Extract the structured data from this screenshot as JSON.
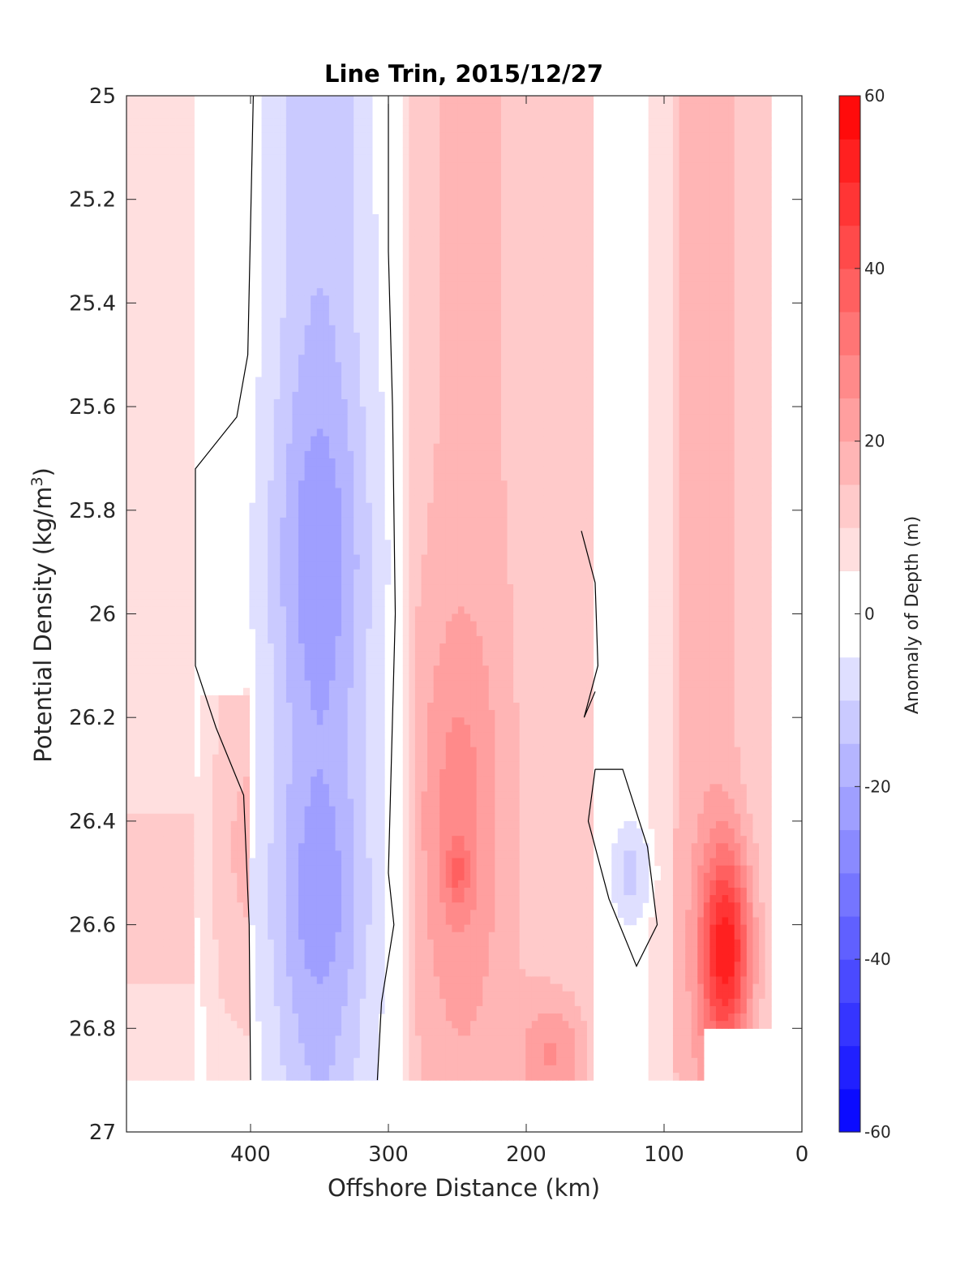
{
  "chart_data": {
    "type": "contourf",
    "title": "Line Trin, 2015/12/27",
    "xlabel": "Offshore Distance (km)",
    "ylabel": "Potential Density (kg/m",
    "ylabel_superscript": "3",
    "ylabel_suffix": ")",
    "xlim": [
      490,
      0
    ],
    "ylim": [
      25,
      27
    ],
    "x_reversed": true,
    "y_reversed": true,
    "xticks": [
      400,
      300,
      200,
      100,
      0
    ],
    "yticks": [
      25,
      25.2,
      25.4,
      25.6,
      25.8,
      26,
      26.2,
      26.4,
      26.6,
      26.8,
      27
    ],
    "xtick_labels": [
      "400",
      "300",
      "200",
      "100",
      "0"
    ],
    "ytick_labels": [
      "25",
      "25.2",
      "25.4",
      "25.6",
      "25.8",
      "26",
      "26.2",
      "26.4",
      "26.6",
      "26.8",
      "27"
    ],
    "colorbar": {
      "label": "Anomaly of Depth (m)",
      "range": [
        -60,
        60
      ],
      "level_step": 5,
      "ticks": [
        60,
        40,
        20,
        0,
        -20,
        -40,
        -60
      ],
      "tick_labels": [
        "60",
        "40",
        "20",
        "0",
        "-20",
        "-40",
        "-60"
      ],
      "low_color": "#0000ff",
      "mid_color": "#ffffff",
      "high_color": "#ff0000"
    },
    "zero_contour": true,
    "data_coverage": {
      "max_density_offshore": 26.9,
      "max_density_nearshore": 26.8
    },
    "field_features": [
      {
        "x": 345,
        "y": 25.95,
        "value": -27
      },
      {
        "x": 350,
        "y": 25.7,
        "value": -28
      },
      {
        "x": 345,
        "y": 26.5,
        "value": -26
      },
      {
        "x": 345,
        "y": 26.72,
        "value": -26
      },
      {
        "x": 120,
        "y": 26.58,
        "value": -12
      },
      {
        "x": 250,
        "y": 26.5,
        "value": 34
      },
      {
        "x": 232,
        "y": 26.15,
        "value": 28
      },
      {
        "x": 55,
        "y": 26.55,
        "value": 48
      },
      {
        "x": 50,
        "y": 26.75,
        "value": 50
      },
      {
        "x": 175,
        "y": 26.88,
        "value": 32
      },
      {
        "x": 420,
        "y": 26.5,
        "value": 22
      }
    ]
  }
}
